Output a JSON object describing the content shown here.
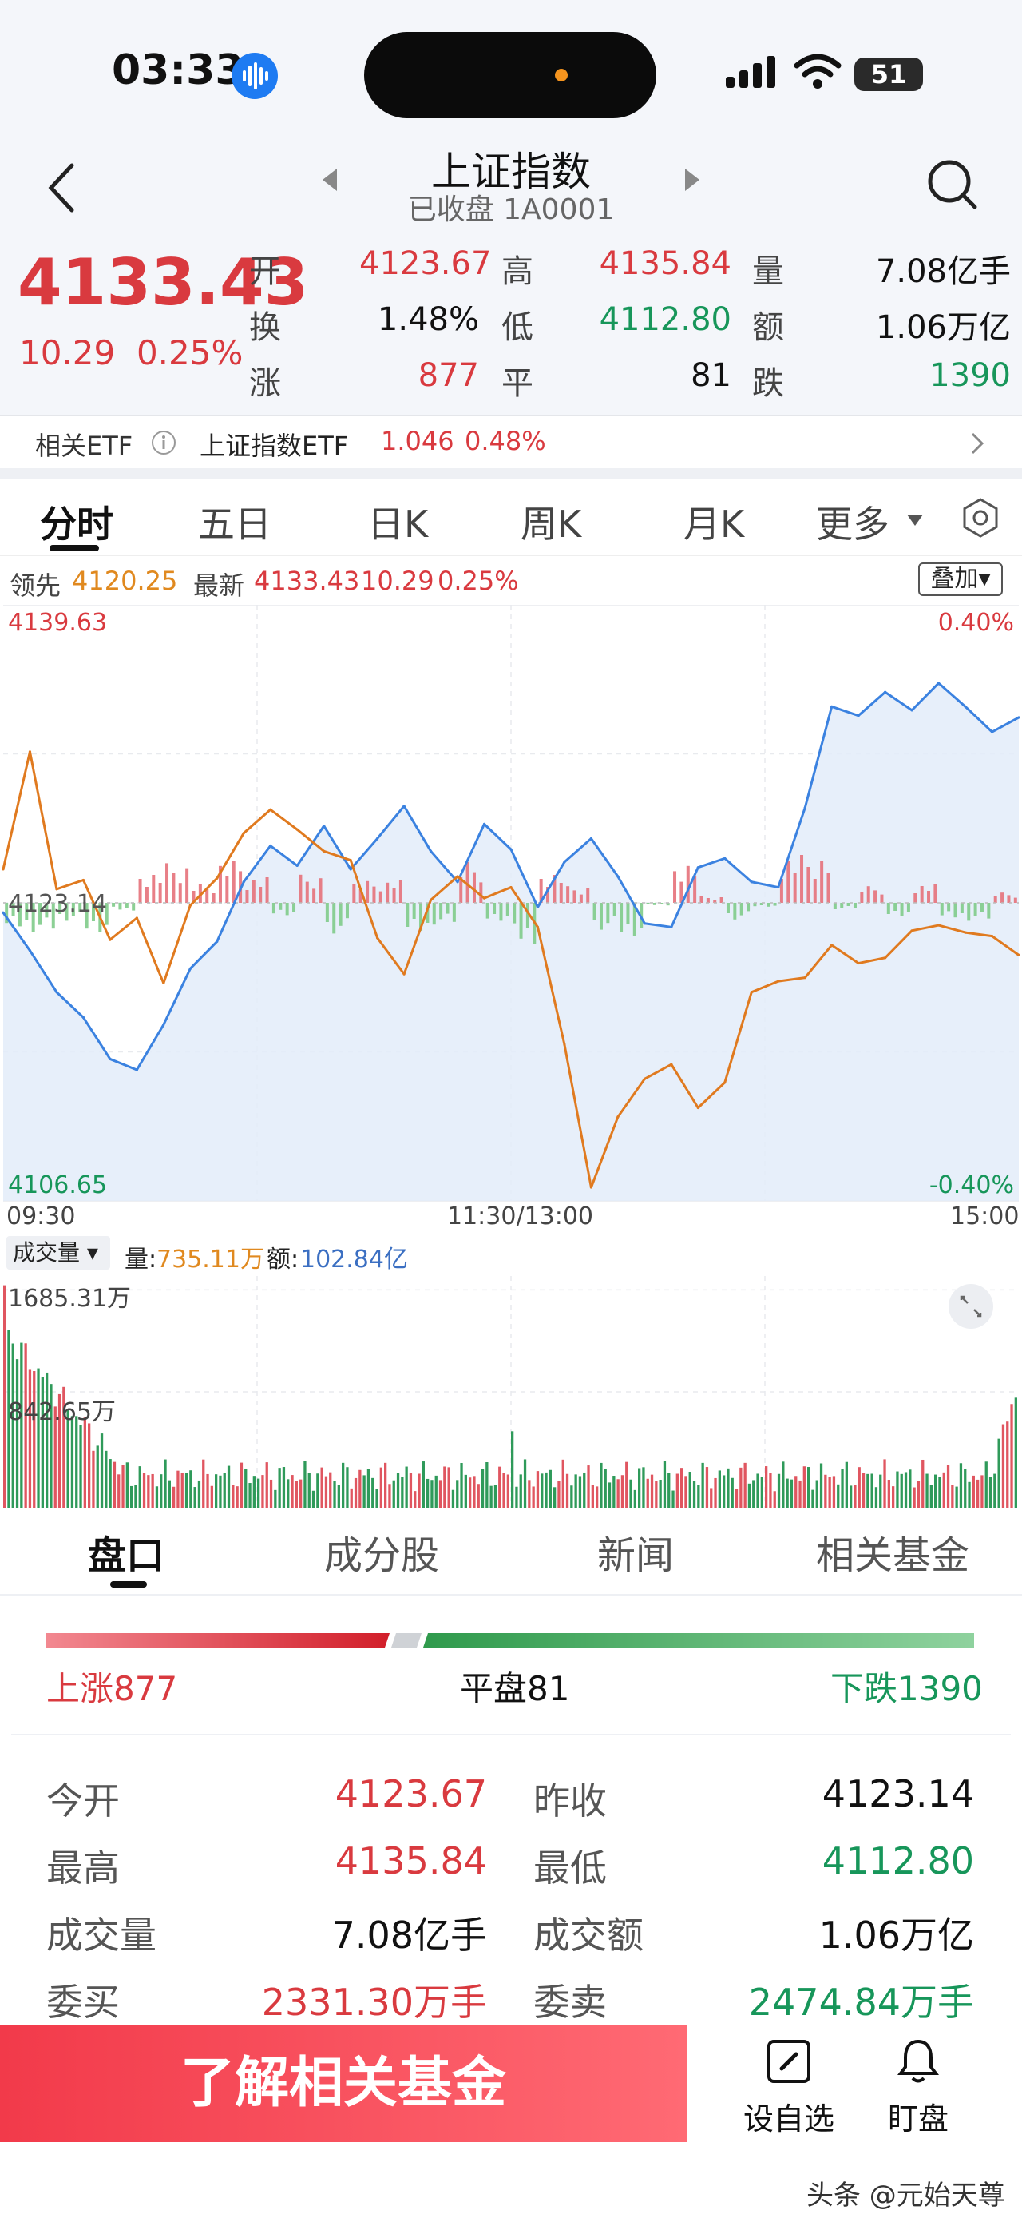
{
  "status": {
    "time": "03:33",
    "battery": "51"
  },
  "nav": {
    "title": "上证指数",
    "subtitle": "已收盘 1A0001"
  },
  "quote": {
    "price": "4133.43",
    "change": "10.29",
    "change_pct": "0.25%",
    "open_label": "开",
    "open": "4123.67",
    "high_label": "高",
    "high": "4135.84",
    "vol_label": "量",
    "volume": "7.08亿手",
    "turnover_label": "换",
    "turnover": "1.48%",
    "low_label": "低",
    "low": "4112.80",
    "amount_label": "额",
    "amount": "1.06万亿",
    "up_label": "涨",
    "up": "877",
    "flat_label": "平",
    "flat": "81",
    "down_label": "跌",
    "down": "1390"
  },
  "etf": {
    "label": "相关ETF",
    "name": "上证指数ETF",
    "price": "1.046",
    "pct": "0.48%"
  },
  "chart_tabs": [
    "分时",
    "五日",
    "日K",
    "周K",
    "月K",
    "更多"
  ],
  "legend": {
    "lead_label": "领先",
    "lead_value": "4120.25",
    "latest_label": "最新",
    "latest_value": "4133.43",
    "latest_change": "10.29",
    "latest_pct": "0.25%",
    "overlay": "叠加"
  },
  "chart_data": {
    "type": "line",
    "x_ticks": [
      "09:30",
      "11:30/13:00",
      "15:00"
    ],
    "ylim": [
      4106.65,
      4139.63
    ],
    "y_ticks": [
      "4139.63",
      "4123.14",
      "4106.65"
    ],
    "pct_ticks": [
      "0.40%",
      "-0.40%"
    ],
    "series": [
      {
        "name": "最新",
        "color": "#3b82e0",
        "values": [
          4122.6,
          4120.5,
          4118.2,
          4116.8,
          4114.5,
          4113.9,
          4116.4,
          4119.5,
          4121.0,
          4124.3,
          4126.3,
          4125.2,
          4127.4,
          4125.0,
          4126.7,
          4128.5,
          4126.0,
          4124.3,
          4127.5,
          4126.1,
          4122.9,
          4125.4,
          4126.7,
          4124.6,
          4122.0,
          4121.8,
          4125.1,
          4125.6,
          4124.3,
          4124.0,
          4128.4,
          4134.0,
          4133.5,
          4134.8,
          4133.8,
          4135.3,
          4134.0,
          4132.6,
          4133.4
        ]
      },
      {
        "name": "领先",
        "color": "#e07a1f",
        "values": [
          4125.0,
          4131.5,
          4123.9,
          4124.4,
          4121.1,
          4122.3,
          4118.7,
          4123.0,
          4124.5,
          4127.0,
          4128.3,
          4127.2,
          4126.0,
          4125.5,
          4121.2,
          4119.2,
          4123.3,
          4124.6,
          4123.4,
          4124.0,
          4121.8,
          4115.3,
          4107.4,
          4111.3,
          4113.4,
          4114.2,
          4111.8,
          4113.2,
          4118.2,
          4118.8,
          4119.0,
          4120.8,
          4119.8,
          4120.1,
          4121.6,
          4121.9,
          4121.5,
          4121.3,
          4120.25
        ]
      }
    ]
  },
  "volume": {
    "selector": "成交量",
    "vol_label": "量:",
    "vol_value": "735.11万",
    "amt_label": "额:",
    "amt_value": "102.84亿",
    "max_label": "1685.31万",
    "mid_label": "842.65万"
  },
  "lower_tabs": [
    "盘口",
    "成分股",
    "新闻",
    "相关基金"
  ],
  "breadth": {
    "up": "上涨877",
    "flat": "平盘81",
    "down": "下跌1390"
  },
  "stats": [
    {
      "label": "今开",
      "value": "4123.67",
      "color": "red"
    },
    {
      "label": "昨收",
      "value": "4123.14",
      "color": "dark"
    },
    {
      "label": "最高",
      "value": "4135.84",
      "color": "red"
    },
    {
      "label": "最低",
      "value": "4112.80",
      "color": "green"
    },
    {
      "label": "成交量",
      "value": "7.08亿手",
      "color": "dark"
    },
    {
      "label": "成交额",
      "value": "1.06万亿",
      "color": "dark"
    },
    {
      "label": "委买",
      "value": "2331.30万手",
      "color": "red"
    },
    {
      "label": "委卖",
      "value": "2474.84万手",
      "color": "green"
    }
  ],
  "bottom": {
    "cta": "了解相关基金",
    "watch": "设自选",
    "monitor": "盯盘"
  },
  "watermark": "头条 @元始天尊",
  "colors": {
    "up": "#d93a3f",
    "down": "#17965a",
    "accent": "#f23a4a"
  }
}
